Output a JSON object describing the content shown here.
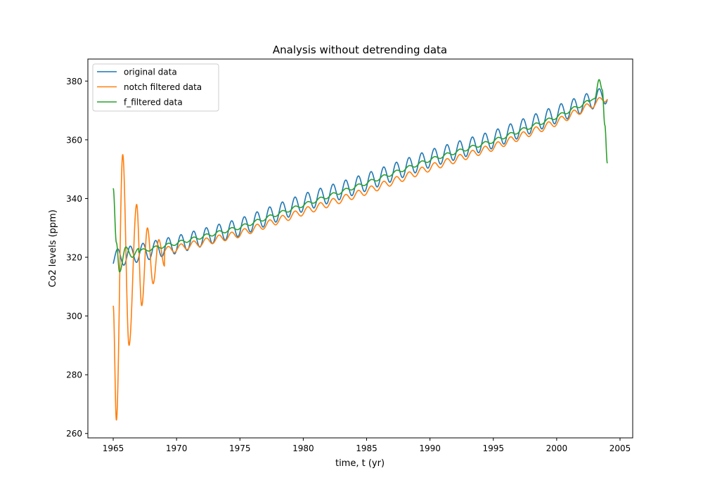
{
  "chart_data": {
    "type": "line",
    "title": "Analysis without detrending data",
    "xlabel": "time, t (yr)",
    "ylabel": "Co2 levels (ppm)",
    "xlim": [
      1963.0,
      2006.0
    ],
    "ylim": [
      258.5,
      387.5
    ],
    "xticks": [
      1965,
      1970,
      1975,
      1980,
      1985,
      1990,
      1995,
      2000,
      2005
    ],
    "yticks": [
      260,
      280,
      300,
      320,
      340,
      360,
      380
    ],
    "grid": false,
    "legend_position": "top-left",
    "series": [
      {
        "name": "original data",
        "color": "#1f77b4",
        "trend": [
          [
            1965.0,
            319.5
          ],
          [
            1970.0,
            324.3
          ],
          [
            1975.0,
            330.2
          ],
          [
            1980.0,
            338.6
          ],
          [
            1985.0,
            345.6
          ],
          [
            1990.0,
            353.6
          ],
          [
            1995.0,
            360.1
          ],
          [
            2000.0,
            368.7
          ],
          [
            2004.0,
            375.5
          ]
        ],
        "seasonal_amplitude": 3.0,
        "period": 1.0
      },
      {
        "name": "notch filtered data",
        "color": "#ff7f0e",
        "trend": [
          [
            1965.0,
            319.0
          ],
          [
            1970.0,
            323.0
          ],
          [
            1975.0,
            328.0
          ],
          [
            1980.0,
            335.5
          ],
          [
            1985.0,
            342.5
          ],
          [
            1990.0,
            350.5
          ],
          [
            1995.0,
            357.5
          ],
          [
            2000.0,
            366.0
          ],
          [
            2004.0,
            374.5
          ]
        ],
        "seasonal_amplitude": 1.2,
        "period": 1.0,
        "start_transient": [
          [
            1965.0,
            303.5
          ],
          [
            1965.25,
            264.5
          ],
          [
            1965.75,
            355.0
          ],
          [
            1966.25,
            290.0
          ],
          [
            1966.85,
            338.0
          ],
          [
            1967.25,
            303.5
          ],
          [
            1967.7,
            330.0
          ],
          [
            1968.15,
            311.0
          ],
          [
            1968.6,
            326.0
          ],
          [
            1969.05,
            317.0
          ]
        ]
      },
      {
        "name": "f_filtered data",
        "color": "#2ca02c",
        "trend": [
          [
            1965.0,
            320.0
          ],
          [
            1970.0,
            324.8
          ],
          [
            1975.0,
            330.2
          ],
          [
            1980.0,
            337.8
          ],
          [
            1985.0,
            345.3
          ],
          [
            1990.0,
            353.2
          ],
          [
            1995.0,
            359.6
          ],
          [
            2000.0,
            367.8
          ],
          [
            2002.5,
            373.0
          ]
        ],
        "seasonal_amplitude": 0.6,
        "period": 1.0,
        "start_transient": [
          [
            1965.0,
            343.5
          ],
          [
            1965.25,
            325.0
          ],
          [
            1965.5,
            315.0
          ],
          [
            1966.0,
            323.5
          ],
          [
            1966.5,
            320.0
          ],
          [
            1967.0,
            323.0
          ]
        ],
        "end_transient": [
          [
            2002.5,
            373.0
          ],
          [
            2003.0,
            374.0
          ],
          [
            2003.35,
            380.5
          ],
          [
            2003.6,
            377.0
          ],
          [
            2003.8,
            365.0
          ],
          [
            2004.0,
            352.0
          ]
        ]
      }
    ]
  }
}
